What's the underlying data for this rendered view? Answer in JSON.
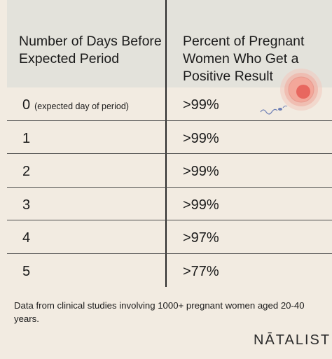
{
  "table": {
    "header_days": "Number of Days Before Expected Period",
    "header_percent": "Percent of Pregnant Women Who Get a Positive Result",
    "rows": [
      {
        "days": "0",
        "note": "(expected day of period)",
        "percent": ">99%"
      },
      {
        "days": "1",
        "note": "",
        "percent": ">99%"
      },
      {
        "days": "2",
        "note": "",
        "percent": ">99%"
      },
      {
        "days": "3",
        "note": "",
        "percent": ">99%"
      },
      {
        "days": "4",
        "note": "",
        "percent": ">97%"
      },
      {
        "days": "5",
        "note": "",
        "percent": ">77%"
      }
    ]
  },
  "footnote": "Data from clinical studies involving 1000+ pregnant women aged 20-40 years.",
  "brand": {
    "name": "NĀTALIST"
  },
  "colors": {
    "background": "#f2ebe1",
    "header": "#e3e2db",
    "text": "#1b1b1b",
    "accent": "#e8675f"
  },
  "icons": {
    "decoration": "egg-and-sperm-illustration"
  }
}
